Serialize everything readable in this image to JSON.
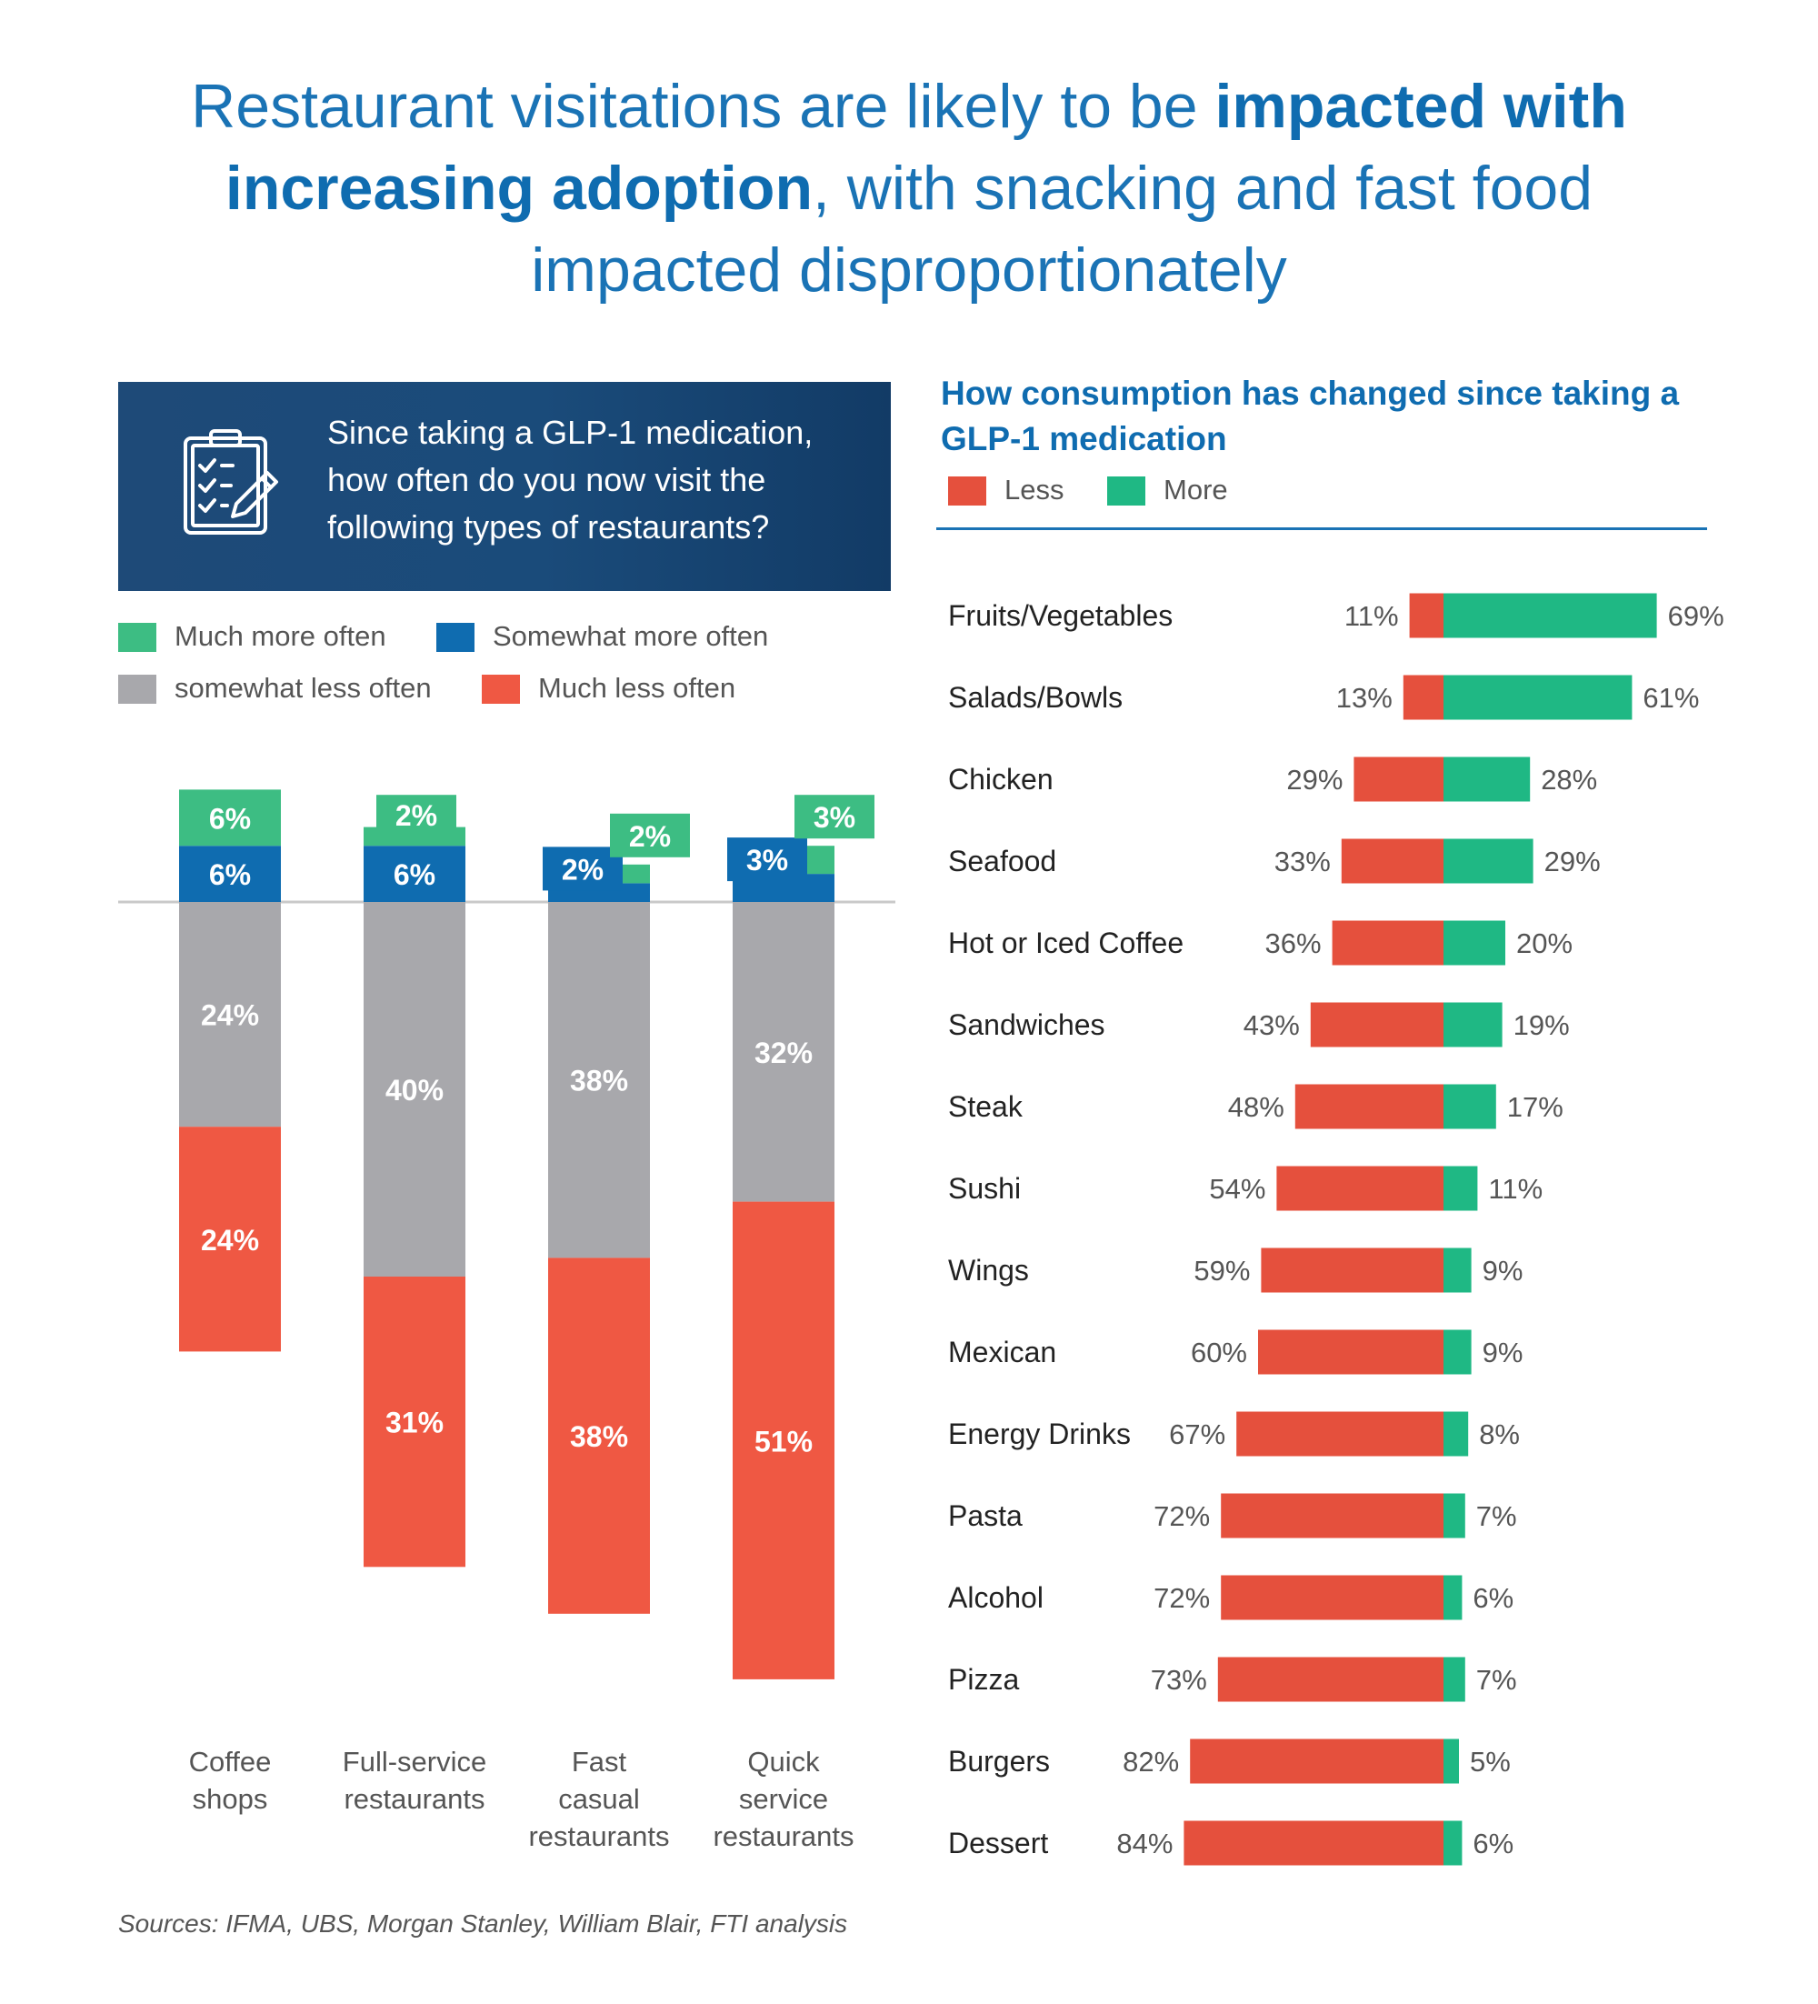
{
  "headline": {
    "part1": "Restaurant visitations are likely to be ",
    "bold": "impacted with increasing adoption",
    "part2": ", with snacking and fast food impacted disproportionately"
  },
  "left_panel": {
    "icon": "clipboard-checklist-icon",
    "question": "Since taking a GLP-1 medication, how often do you now visit the following types of restaurants?",
    "legend": [
      {
        "label": "Much more often",
        "color": "#3dbd83"
      },
      {
        "label": "Somewhat more often",
        "color": "#0f6cb0"
      },
      {
        "label": "somewhat less often",
        "color": "#a8a8ac"
      },
      {
        "label": "Much less often",
        "color": "#ef5843"
      }
    ]
  },
  "right_panel": {
    "title": "How consumption has changed since taking a GLP-1 medication",
    "legend": [
      {
        "label": "Less",
        "color": "#e5503d"
      },
      {
        "label": "More",
        "color": "#1fb884"
      }
    ]
  },
  "chart_data": [
    {
      "type": "bar",
      "stacked": true,
      "diverging": true,
      "title": "Since taking a GLP-1 medication, how often do you now visit the following types of restaurants?",
      "categories": [
        "Coffee shops",
        "Full-service restaurants",
        "Fast casual restaurants",
        "Quick service restaurants"
      ],
      "series": [
        {
          "name": "Much more often",
          "values": [
            6,
            2,
            2,
            3
          ],
          "color": "#3dbd83",
          "direction": "up"
        },
        {
          "name": "Somewhat more often",
          "values": [
            6,
            6,
            2,
            3
          ],
          "color": "#0f6cb0",
          "direction": "up"
        },
        {
          "name": "somewhat less often",
          "values": [
            24,
            40,
            38,
            32
          ],
          "color": "#a8a8ac",
          "direction": "down"
        },
        {
          "name": "Much less often",
          "values": [
            24,
            31,
            38,
            51
          ],
          "color": "#ef5843",
          "direction": "down"
        }
      ],
      "unit": "%"
    },
    {
      "type": "bar",
      "orientation": "horizontal",
      "diverging": true,
      "title": "How consumption has changed since taking a GLP-1 medication",
      "categories": [
        "Fruits/Vegetables",
        "Salads/Bowls",
        "Chicken",
        "Seafood",
        "Hot or Iced Coffee",
        "Sandwiches",
        "Steak",
        "Sushi",
        "Wings",
        "Mexican",
        "Energy Drinks",
        "Pasta",
        "Alcohol",
        "Pizza",
        "Burgers",
        "Dessert"
      ],
      "series": [
        {
          "name": "Less",
          "values": [
            11,
            13,
            29,
            33,
            36,
            43,
            48,
            54,
            59,
            60,
            67,
            72,
            72,
            73,
            82,
            84
          ],
          "color": "#e5503d"
        },
        {
          "name": "More",
          "values": [
            69,
            61,
            28,
            29,
            20,
            19,
            17,
            11,
            9,
            9,
            8,
            7,
            6,
            7,
            5,
            6
          ],
          "color": "#1fb884"
        }
      ],
      "unit": "%"
    }
  ],
  "sources": "Sources: IFMA, UBS, Morgan Stanley, William Blair, FTI analysis"
}
